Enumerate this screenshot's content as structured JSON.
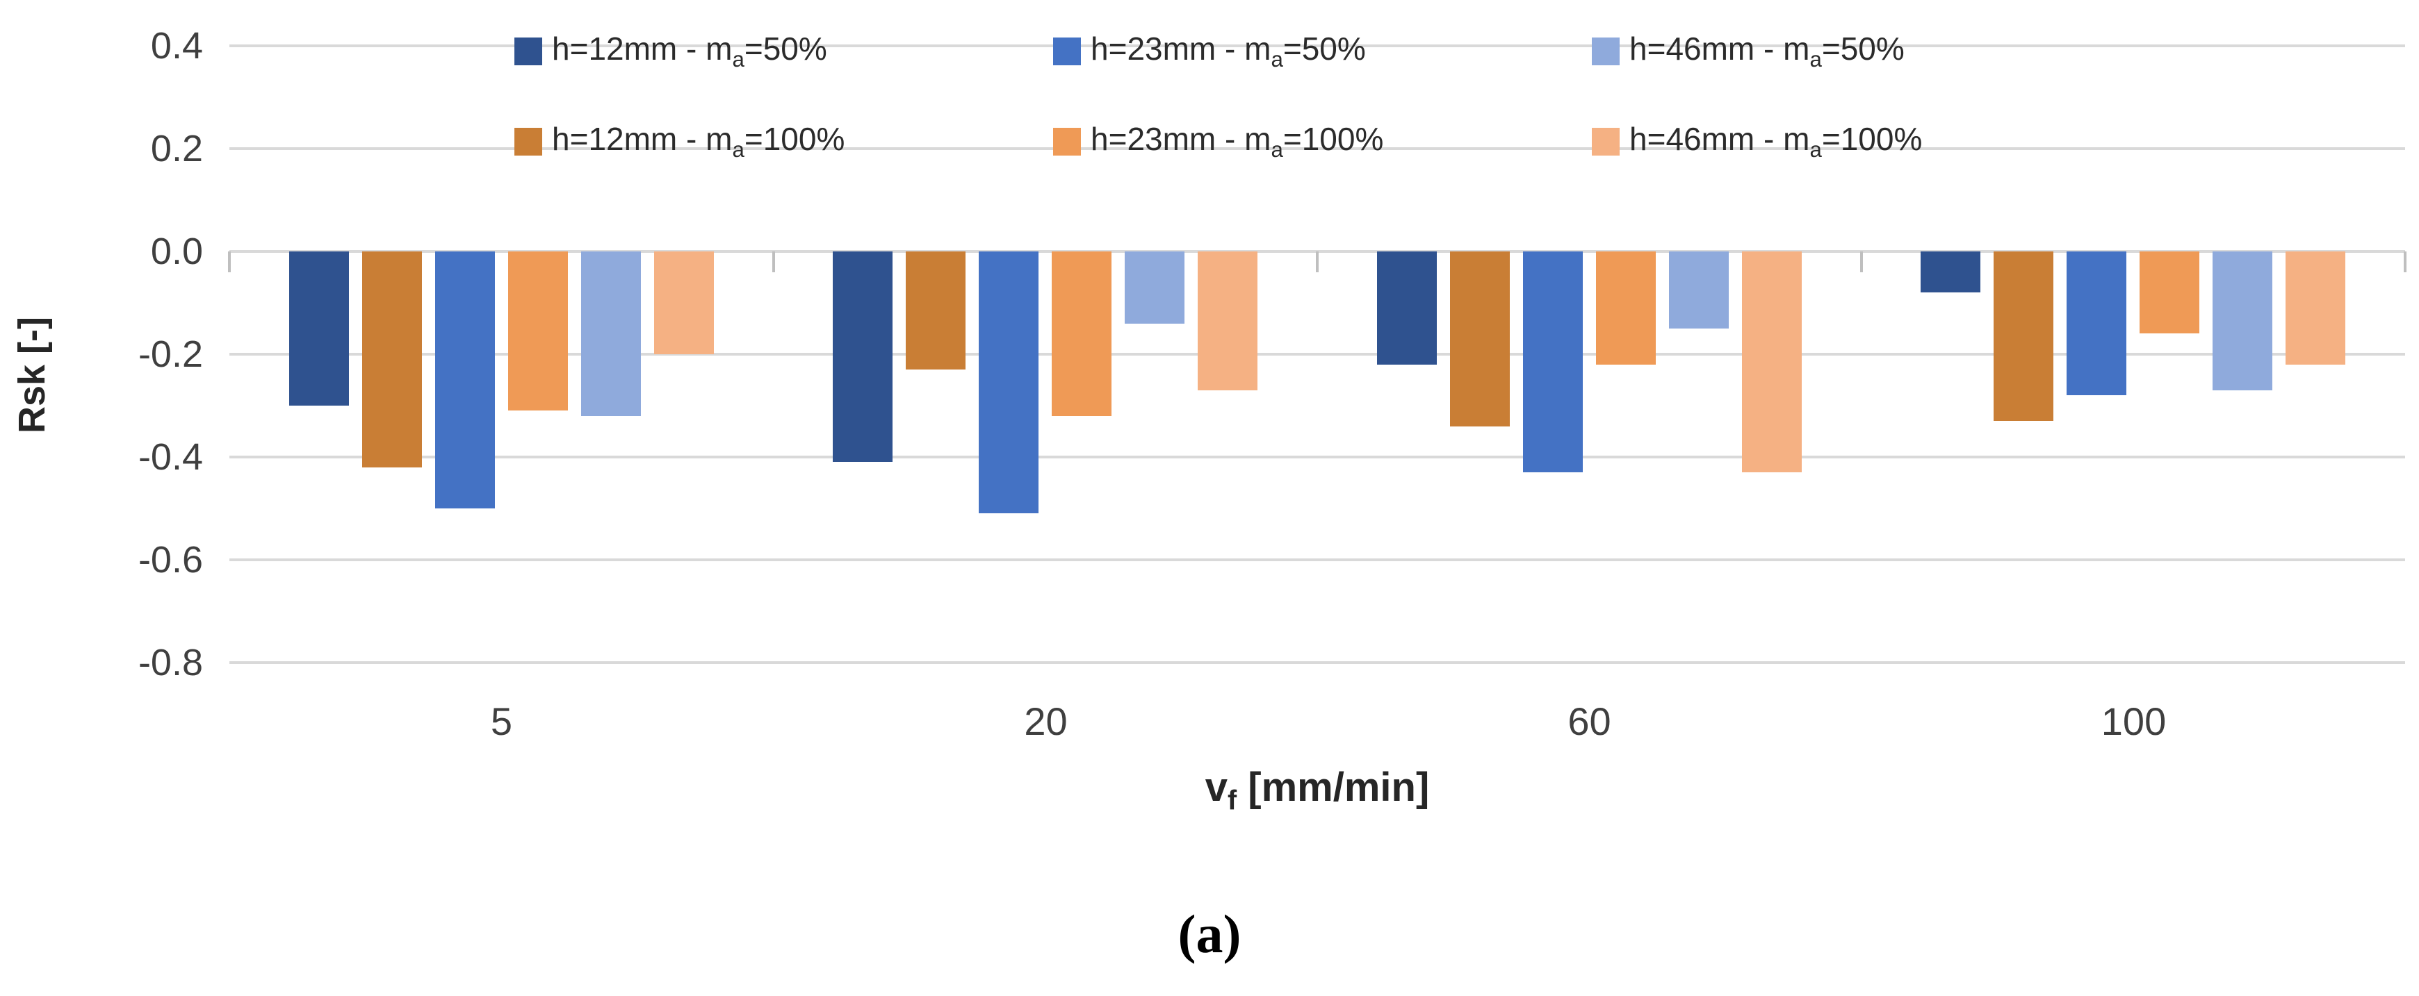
{
  "figure": {
    "caption": "(a)"
  },
  "chart_data": {
    "type": "bar",
    "title": "",
    "xlabel": "vf [mm/min]",
    "xlabel_segments": [
      [
        "v",
        false
      ],
      [
        "f",
        true
      ],
      [
        " [mm/min]",
        false
      ]
    ],
    "ylabel": "Rsk [-]",
    "categories": [
      "5",
      "20",
      "60",
      "100"
    ],
    "y_ticks": [
      0.4,
      0.2,
      0.0,
      -0.2,
      -0.4,
      -0.6,
      -0.8
    ],
    "y_tick_labels": [
      "0.4",
      "0.2",
      "0.0",
      "-0.2",
      "-0.4",
      "-0.6",
      "-0.8"
    ],
    "ylim": [
      -0.9,
      0.4
    ],
    "grid": "horizontal",
    "legend_position": "top-center, two rows",
    "series": [
      {
        "name": "h=12mm - ma=50%",
        "name_segments": [
          [
            "h=12mm - m",
            false
          ],
          [
            "a",
            true
          ],
          [
            "=50%",
            false
          ]
        ],
        "color": "#2F528F",
        "values": [
          -0.3,
          -0.41,
          -0.22,
          -0.08
        ]
      },
      {
        "name": "h=12mm - ma=100%",
        "name_segments": [
          [
            "h=12mm - m",
            false
          ],
          [
            "a",
            true
          ],
          [
            "=100%",
            false
          ]
        ],
        "color": "#C97E35",
        "values": [
          -0.42,
          -0.23,
          -0.34,
          -0.33
        ]
      },
      {
        "name": "h=23mm - ma=50%",
        "name_segments": [
          [
            "h=23mm - m",
            false
          ],
          [
            "a",
            true
          ],
          [
            "=50%",
            false
          ]
        ],
        "color": "#4472C4",
        "values": [
          -0.5,
          -0.51,
          -0.43,
          -0.28
        ]
      },
      {
        "name": "h=23mm - ma=100%",
        "name_segments": [
          [
            "h=23mm - m",
            false
          ],
          [
            "a",
            true
          ],
          [
            "=100%",
            false
          ]
        ],
        "color": "#EF9A56",
        "values": [
          -0.31,
          -0.32,
          -0.22,
          -0.16
        ]
      },
      {
        "name": "h=46mm - ma=50%",
        "name_segments": [
          [
            "h=46mm - m",
            false
          ],
          [
            "a",
            true
          ],
          [
            "=50%",
            false
          ]
        ],
        "color": "#8FAADC",
        "values": [
          -0.32,
          -0.14,
          -0.15,
          -0.27
        ]
      },
      {
        "name": "h=46mm - ma=100%",
        "name_segments": [
          [
            "h=46mm - m",
            false
          ],
          [
            "a",
            true
          ],
          [
            "=100%",
            false
          ]
        ],
        "color": "#F5B183",
        "values": [
          -0.2,
          -0.27,
          -0.43,
          -0.22
        ]
      }
    ],
    "legend_row_order": [
      [
        0,
        2,
        4
      ],
      [
        1,
        3,
        5
      ]
    ],
    "colors": {
      "gridline": "#D9D9D9",
      "axis_tick": "#BFBFBF",
      "tick_text": "#3F3F3F",
      "title_text": "#262626"
    }
  }
}
